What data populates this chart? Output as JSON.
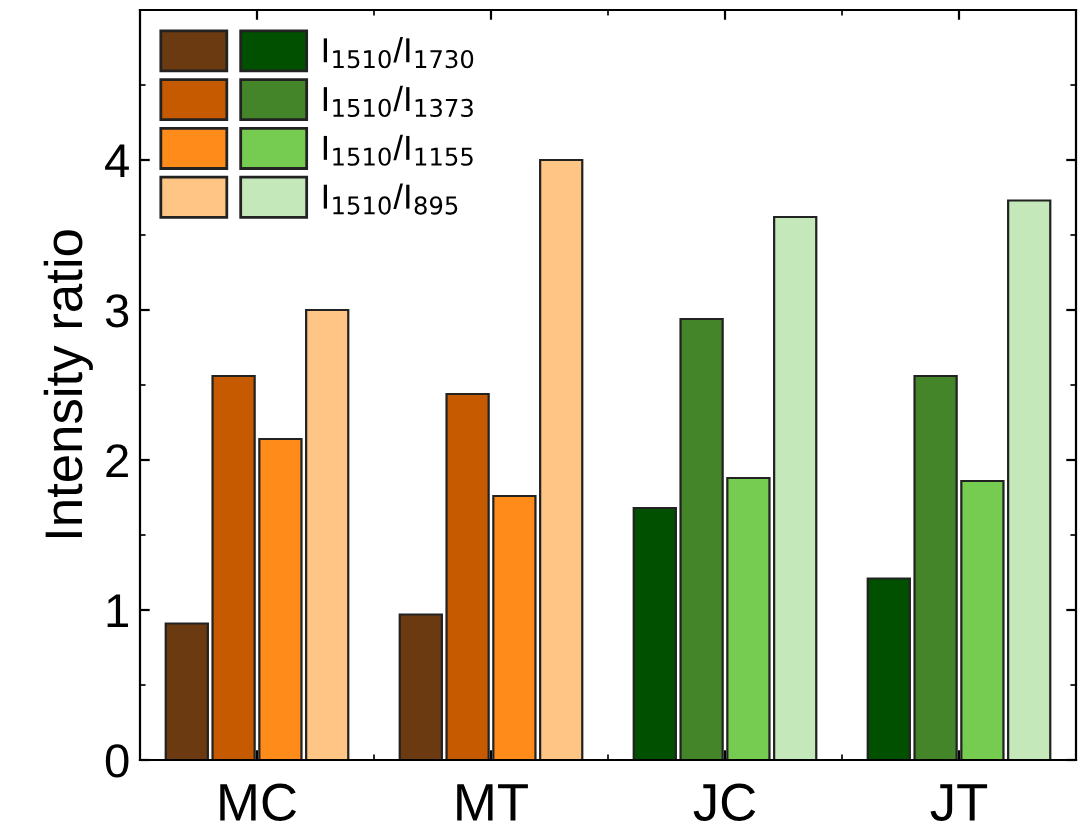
{
  "chart_data": {
    "type": "bar",
    "ylabel": "Intensity ratio",
    "categories": [
      "MC",
      "MT",
      "JC",
      "JT"
    ],
    "ylim": [
      0,
      5
    ],
    "yticks": [
      0,
      1,
      2,
      3,
      4
    ],
    "grid": false,
    "legend": "top left",
    "series": [
      {
        "name": "I$_{1510}$/I$_{1730}$",
        "colors": [
          "#6b3a10",
          "#6b3a10",
          "#005000",
          "#005000"
        ],
        "values": [
          0.91,
          0.97,
          1.68,
          1.21
        ]
      },
      {
        "name": "I$_{1510}$/I$_{1373}$",
        "colors": [
          "#c65a00",
          "#c65a00",
          "#45852a",
          "#45852a"
        ],
        "values": [
          2.56,
          2.44,
          2.94,
          2.56
        ]
      },
      {
        "name": "I$_{1510}$/I$_{1155}$",
        "colors": [
          "#ff8c1a",
          "#ff8c1a",
          "#76cc50",
          "#76cc50"
        ],
        "values": [
          2.14,
          1.76,
          1.88,
          1.86
        ]
      },
      {
        "name": "I$_{1510}$/I$_{895}$",
        "colors": [
          "#ffc585",
          "#ffc585",
          "#c5e8bb",
          "#c5e8bb"
        ],
        "values": [
          3.0,
          4.0,
          3.62,
          3.73
        ]
      }
    ]
  }
}
